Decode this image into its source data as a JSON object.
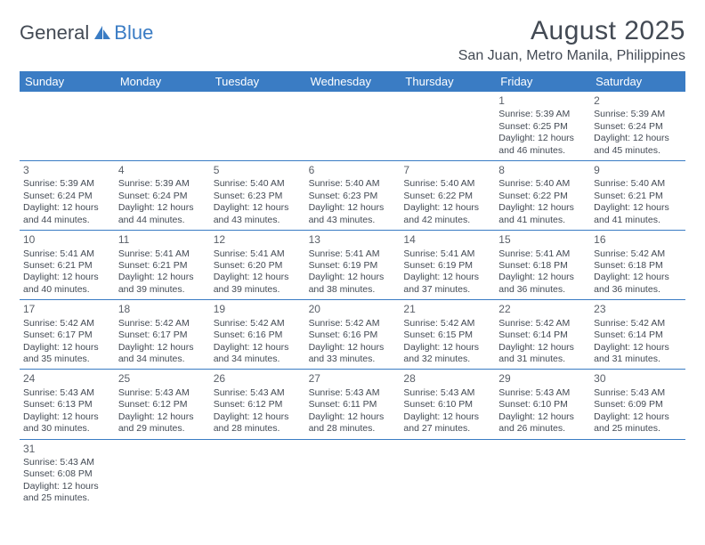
{
  "logo": {
    "text1": "General",
    "text2": "Blue"
  },
  "title": "August 2025",
  "location": "San Juan, Metro Manila, Philippines",
  "header_bg": "#3a7cc4",
  "header_fg": "#ffffff",
  "text_color": "#434a54",
  "days_of_week": [
    "Sunday",
    "Monday",
    "Tuesday",
    "Wednesday",
    "Thursday",
    "Friday",
    "Saturday"
  ],
  "weeks": [
    [
      {
        "n": "",
        "sr": "",
        "ss": "",
        "dl1": "",
        "dl2": ""
      },
      {
        "n": "",
        "sr": "",
        "ss": "",
        "dl1": "",
        "dl2": ""
      },
      {
        "n": "",
        "sr": "",
        "ss": "",
        "dl1": "",
        "dl2": ""
      },
      {
        "n": "",
        "sr": "",
        "ss": "",
        "dl1": "",
        "dl2": ""
      },
      {
        "n": "",
        "sr": "",
        "ss": "",
        "dl1": "",
        "dl2": ""
      },
      {
        "n": "1",
        "sr": "Sunrise: 5:39 AM",
        "ss": "Sunset: 6:25 PM",
        "dl1": "Daylight: 12 hours",
        "dl2": "and 46 minutes."
      },
      {
        "n": "2",
        "sr": "Sunrise: 5:39 AM",
        "ss": "Sunset: 6:24 PM",
        "dl1": "Daylight: 12 hours",
        "dl2": "and 45 minutes."
      }
    ],
    [
      {
        "n": "3",
        "sr": "Sunrise: 5:39 AM",
        "ss": "Sunset: 6:24 PM",
        "dl1": "Daylight: 12 hours",
        "dl2": "and 44 minutes."
      },
      {
        "n": "4",
        "sr": "Sunrise: 5:39 AM",
        "ss": "Sunset: 6:24 PM",
        "dl1": "Daylight: 12 hours",
        "dl2": "and 44 minutes."
      },
      {
        "n": "5",
        "sr": "Sunrise: 5:40 AM",
        "ss": "Sunset: 6:23 PM",
        "dl1": "Daylight: 12 hours",
        "dl2": "and 43 minutes."
      },
      {
        "n": "6",
        "sr": "Sunrise: 5:40 AM",
        "ss": "Sunset: 6:23 PM",
        "dl1": "Daylight: 12 hours",
        "dl2": "and 43 minutes."
      },
      {
        "n": "7",
        "sr": "Sunrise: 5:40 AM",
        "ss": "Sunset: 6:22 PM",
        "dl1": "Daylight: 12 hours",
        "dl2": "and 42 minutes."
      },
      {
        "n": "8",
        "sr": "Sunrise: 5:40 AM",
        "ss": "Sunset: 6:22 PM",
        "dl1": "Daylight: 12 hours",
        "dl2": "and 41 minutes."
      },
      {
        "n": "9",
        "sr": "Sunrise: 5:40 AM",
        "ss": "Sunset: 6:21 PM",
        "dl1": "Daylight: 12 hours",
        "dl2": "and 41 minutes."
      }
    ],
    [
      {
        "n": "10",
        "sr": "Sunrise: 5:41 AM",
        "ss": "Sunset: 6:21 PM",
        "dl1": "Daylight: 12 hours",
        "dl2": "and 40 minutes."
      },
      {
        "n": "11",
        "sr": "Sunrise: 5:41 AM",
        "ss": "Sunset: 6:21 PM",
        "dl1": "Daylight: 12 hours",
        "dl2": "and 39 minutes."
      },
      {
        "n": "12",
        "sr": "Sunrise: 5:41 AM",
        "ss": "Sunset: 6:20 PM",
        "dl1": "Daylight: 12 hours",
        "dl2": "and 39 minutes."
      },
      {
        "n": "13",
        "sr": "Sunrise: 5:41 AM",
        "ss": "Sunset: 6:19 PM",
        "dl1": "Daylight: 12 hours",
        "dl2": "and 38 minutes."
      },
      {
        "n": "14",
        "sr": "Sunrise: 5:41 AM",
        "ss": "Sunset: 6:19 PM",
        "dl1": "Daylight: 12 hours",
        "dl2": "and 37 minutes."
      },
      {
        "n": "15",
        "sr": "Sunrise: 5:41 AM",
        "ss": "Sunset: 6:18 PM",
        "dl1": "Daylight: 12 hours",
        "dl2": "and 36 minutes."
      },
      {
        "n": "16",
        "sr": "Sunrise: 5:42 AM",
        "ss": "Sunset: 6:18 PM",
        "dl1": "Daylight: 12 hours",
        "dl2": "and 36 minutes."
      }
    ],
    [
      {
        "n": "17",
        "sr": "Sunrise: 5:42 AM",
        "ss": "Sunset: 6:17 PM",
        "dl1": "Daylight: 12 hours",
        "dl2": "and 35 minutes."
      },
      {
        "n": "18",
        "sr": "Sunrise: 5:42 AM",
        "ss": "Sunset: 6:17 PM",
        "dl1": "Daylight: 12 hours",
        "dl2": "and 34 minutes."
      },
      {
        "n": "19",
        "sr": "Sunrise: 5:42 AM",
        "ss": "Sunset: 6:16 PM",
        "dl1": "Daylight: 12 hours",
        "dl2": "and 34 minutes."
      },
      {
        "n": "20",
        "sr": "Sunrise: 5:42 AM",
        "ss": "Sunset: 6:16 PM",
        "dl1": "Daylight: 12 hours",
        "dl2": "and 33 minutes."
      },
      {
        "n": "21",
        "sr": "Sunrise: 5:42 AM",
        "ss": "Sunset: 6:15 PM",
        "dl1": "Daylight: 12 hours",
        "dl2": "and 32 minutes."
      },
      {
        "n": "22",
        "sr": "Sunrise: 5:42 AM",
        "ss": "Sunset: 6:14 PM",
        "dl1": "Daylight: 12 hours",
        "dl2": "and 31 minutes."
      },
      {
        "n": "23",
        "sr": "Sunrise: 5:42 AM",
        "ss": "Sunset: 6:14 PM",
        "dl1": "Daylight: 12 hours",
        "dl2": "and 31 minutes."
      }
    ],
    [
      {
        "n": "24",
        "sr": "Sunrise: 5:43 AM",
        "ss": "Sunset: 6:13 PM",
        "dl1": "Daylight: 12 hours",
        "dl2": "and 30 minutes."
      },
      {
        "n": "25",
        "sr": "Sunrise: 5:43 AM",
        "ss": "Sunset: 6:12 PM",
        "dl1": "Daylight: 12 hours",
        "dl2": "and 29 minutes."
      },
      {
        "n": "26",
        "sr": "Sunrise: 5:43 AM",
        "ss": "Sunset: 6:12 PM",
        "dl1": "Daylight: 12 hours",
        "dl2": "and 28 minutes."
      },
      {
        "n": "27",
        "sr": "Sunrise: 5:43 AM",
        "ss": "Sunset: 6:11 PM",
        "dl1": "Daylight: 12 hours",
        "dl2": "and 28 minutes."
      },
      {
        "n": "28",
        "sr": "Sunrise: 5:43 AM",
        "ss": "Sunset: 6:10 PM",
        "dl1": "Daylight: 12 hours",
        "dl2": "and 27 minutes."
      },
      {
        "n": "29",
        "sr": "Sunrise: 5:43 AM",
        "ss": "Sunset: 6:10 PM",
        "dl1": "Daylight: 12 hours",
        "dl2": "and 26 minutes."
      },
      {
        "n": "30",
        "sr": "Sunrise: 5:43 AM",
        "ss": "Sunset: 6:09 PM",
        "dl1": "Daylight: 12 hours",
        "dl2": "and 25 minutes."
      }
    ],
    [
      {
        "n": "31",
        "sr": "Sunrise: 5:43 AM",
        "ss": "Sunset: 6:08 PM",
        "dl1": "Daylight: 12 hours",
        "dl2": "and 25 minutes."
      },
      {
        "n": "",
        "sr": "",
        "ss": "",
        "dl1": "",
        "dl2": ""
      },
      {
        "n": "",
        "sr": "",
        "ss": "",
        "dl1": "",
        "dl2": ""
      },
      {
        "n": "",
        "sr": "",
        "ss": "",
        "dl1": "",
        "dl2": ""
      },
      {
        "n": "",
        "sr": "",
        "ss": "",
        "dl1": "",
        "dl2": ""
      },
      {
        "n": "",
        "sr": "",
        "ss": "",
        "dl1": "",
        "dl2": ""
      },
      {
        "n": "",
        "sr": "",
        "ss": "",
        "dl1": "",
        "dl2": ""
      }
    ]
  ]
}
